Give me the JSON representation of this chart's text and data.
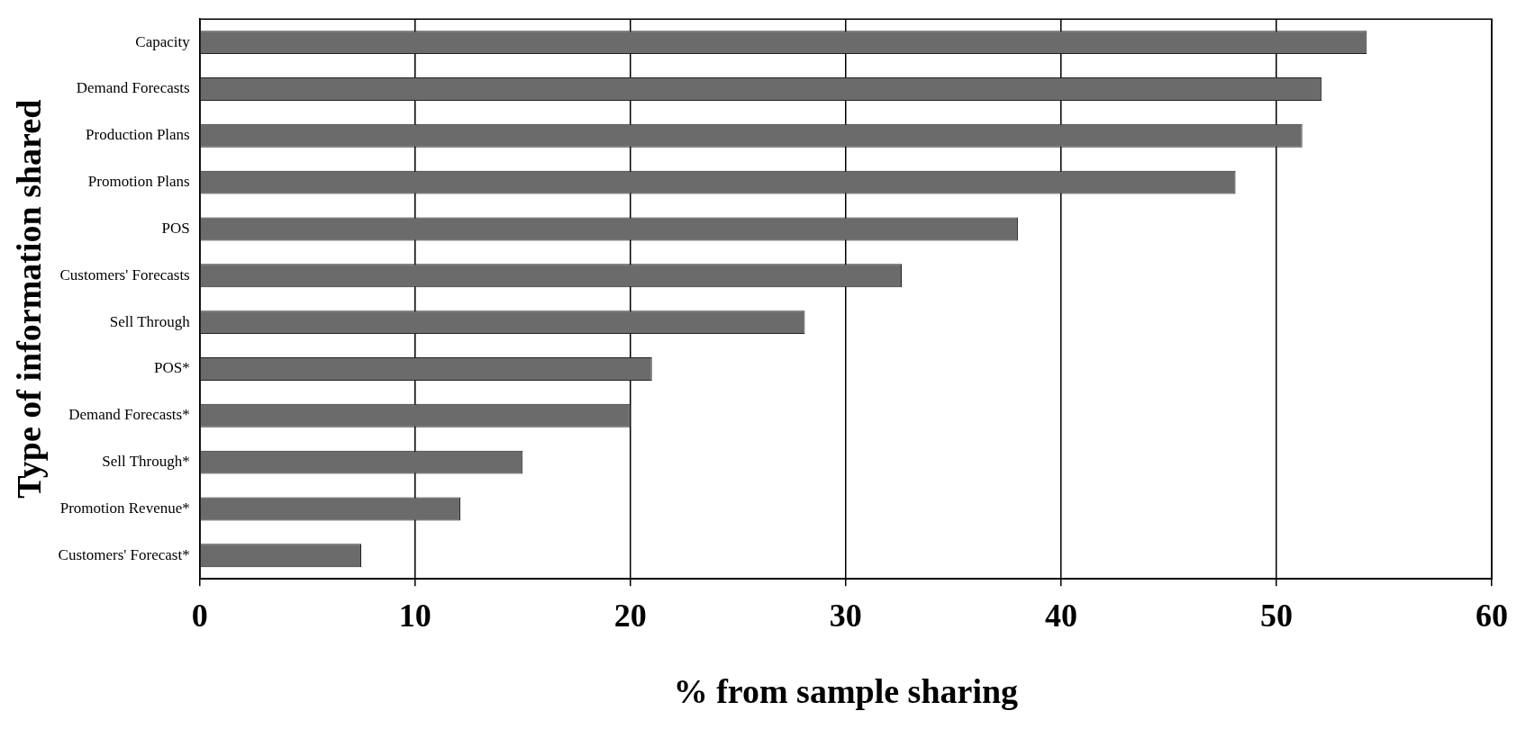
{
  "chart_data": {
    "type": "bar",
    "orientation": "horizontal",
    "xlabel": "% from sample sharing",
    "ylabel": "Type of information shared",
    "categories": [
      "Capacity",
      "Demand Forecasts",
      "Production Plans",
      "Promotion Plans",
      "POS",
      "Customers' Forecasts",
      "Sell Through",
      "POS*",
      "Demand Forecasts*",
      "Sell Through*",
      "Promotion Revenue*",
      "Customers' Forecast*"
    ],
    "values": [
      54.2,
      52.1,
      51.2,
      48.1,
      38,
      32.6,
      28.1,
      21,
      20,
      15,
      12.1,
      7.5
    ],
    "color": "#6b6b6b",
    "xlim": [
      0,
      60
    ],
    "xticks": [
      0,
      10,
      20,
      30,
      40,
      50,
      60
    ],
    "grid": "x"
  }
}
